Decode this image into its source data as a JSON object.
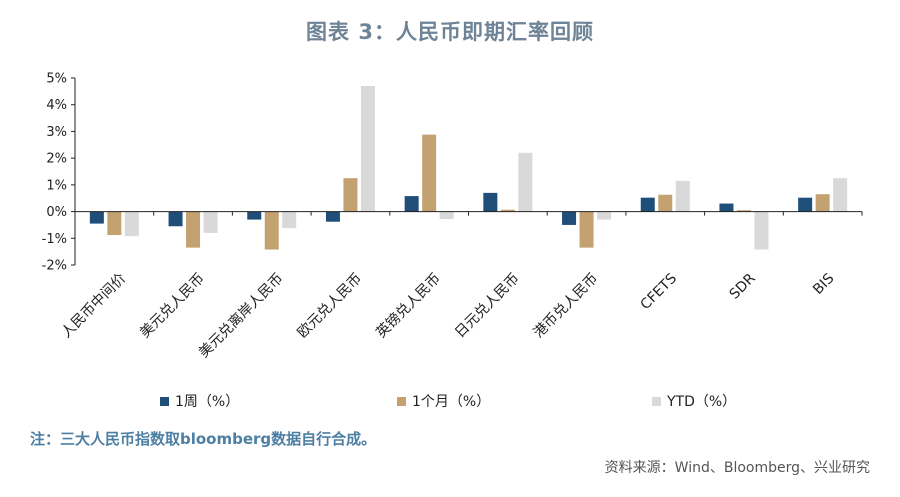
{
  "page": {
    "title": "图表 3：人民币即期汇率回顾"
  },
  "chart_data": {
    "type": "bar",
    "categories": [
      "人民币中间价",
      "美元兑人民币",
      "美元兑离岸人民币",
      "欧元兑人民币",
      "英镑兑人民币",
      "日元兑人民币",
      "港币兑人民币",
      "CFETS",
      "SDR",
      "BIS"
    ],
    "series": [
      {
        "name": "1周（%）",
        "color": "#1f4e79",
        "values": [
          -0.45,
          -0.55,
          -0.3,
          -0.38,
          0.58,
          0.7,
          -0.5,
          0.52,
          0.3,
          0.52
        ]
      },
      {
        "name": "1个月（%）",
        "color": "#c4a170",
        "values": [
          -0.88,
          -1.35,
          -1.42,
          1.25,
          2.88,
          0.07,
          -1.35,
          0.63,
          0.05,
          0.65
        ]
      },
      {
        "name": "YTD（%）",
        "color": "#d9d9d9",
        "values": [
          -0.92,
          -0.8,
          -0.62,
          4.7,
          -0.28,
          2.2,
          -0.3,
          1.15,
          -1.42,
          1.25
        ]
      }
    ],
    "ylim": [
      -2,
      5
    ],
    "yticks": [
      "-2%",
      "-1%",
      "0%",
      "1%",
      "2%",
      "3%",
      "4%",
      "5%"
    ],
    "xlabel": "",
    "ylabel": "",
    "grid": false,
    "legend_position": "bottom"
  },
  "footer": {
    "note": "注：三大人民币指数取bloomberg数据自行合成。",
    "source": "资料来源：Wind、Bloomberg、兴业研究"
  }
}
